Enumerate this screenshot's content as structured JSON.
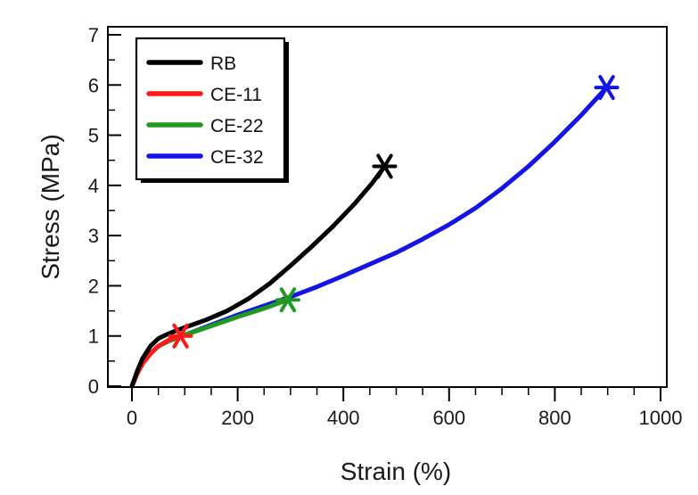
{
  "chart_data": {
    "type": "line",
    "title": "",
    "xlabel": "Strain (%)",
    "ylabel": "Stress (MPa)",
    "xlim": [
      0,
      1000
    ],
    "ylim": [
      0,
      7
    ],
    "x_ticks": [
      0,
      200,
      400,
      600,
      800,
      1000
    ],
    "y_ticks": [
      0,
      1,
      2,
      3,
      4,
      5,
      6,
      7
    ],
    "x_tick_labels": [
      "0",
      "200",
      "400",
      "600",
      "800",
      "1000"
    ],
    "y_tick_labels": [
      "0",
      "1",
      "2",
      "3",
      "4",
      "5",
      "6",
      "7"
    ],
    "legend_position": "top-left",
    "series": [
      {
        "name": "RB",
        "color": "#000000",
        "points": [
          [
            0,
            0
          ],
          [
            10,
            0.3
          ],
          [
            20,
            0.55
          ],
          [
            35,
            0.8
          ],
          [
            50,
            0.95
          ],
          [
            70,
            1.05
          ],
          [
            100,
            1.17
          ],
          [
            140,
            1.32
          ],
          [
            180,
            1.5
          ],
          [
            220,
            1.74
          ],
          [
            260,
            2.04
          ],
          [
            300,
            2.4
          ],
          [
            340,
            2.78
          ],
          [
            380,
            3.18
          ],
          [
            420,
            3.62
          ],
          [
            455,
            4.05
          ],
          [
            478,
            4.38
          ]
        ],
        "break_point": [
          478,
          4.38
        ]
      },
      {
        "name": "CE-11",
        "color": "#ff1a1a",
        "points": [
          [
            0,
            0
          ],
          [
            10,
            0.25
          ],
          [
            20,
            0.45
          ],
          [
            35,
            0.65
          ],
          [
            50,
            0.8
          ],
          [
            70,
            0.92
          ],
          [
            92,
            1.0
          ]
        ],
        "break_point": [
          92,
          1.0
        ]
      },
      {
        "name": "CE-22",
        "color": "#1f9a1f",
        "points": [
          [
            0,
            0
          ],
          [
            10,
            0.25
          ],
          [
            20,
            0.45
          ],
          [
            35,
            0.65
          ],
          [
            50,
            0.8
          ],
          [
            70,
            0.9
          ],
          [
            100,
            1.02
          ],
          [
            150,
            1.2
          ],
          [
            200,
            1.38
          ],
          [
            250,
            1.55
          ],
          [
            295,
            1.72
          ]
        ],
        "break_point": [
          295,
          1.72
        ]
      },
      {
        "name": "CE-32",
        "color": "#1414e6",
        "points": [
          [
            0,
            0
          ],
          [
            10,
            0.25
          ],
          [
            20,
            0.45
          ],
          [
            35,
            0.65
          ],
          [
            50,
            0.8
          ],
          [
            70,
            0.9
          ],
          [
            100,
            1.02
          ],
          [
            150,
            1.22
          ],
          [
            200,
            1.42
          ],
          [
            250,
            1.6
          ],
          [
            300,
            1.78
          ],
          [
            350,
            1.98
          ],
          [
            400,
            2.2
          ],
          [
            450,
            2.43
          ],
          [
            500,
            2.66
          ],
          [
            550,
            2.93
          ],
          [
            600,
            3.22
          ],
          [
            650,
            3.55
          ],
          [
            700,
            3.94
          ],
          [
            750,
            4.38
          ],
          [
            800,
            4.87
          ],
          [
            850,
            5.4
          ],
          [
            898,
            5.95
          ]
        ],
        "break_point": [
          898,
          5.95
        ]
      }
    ]
  }
}
